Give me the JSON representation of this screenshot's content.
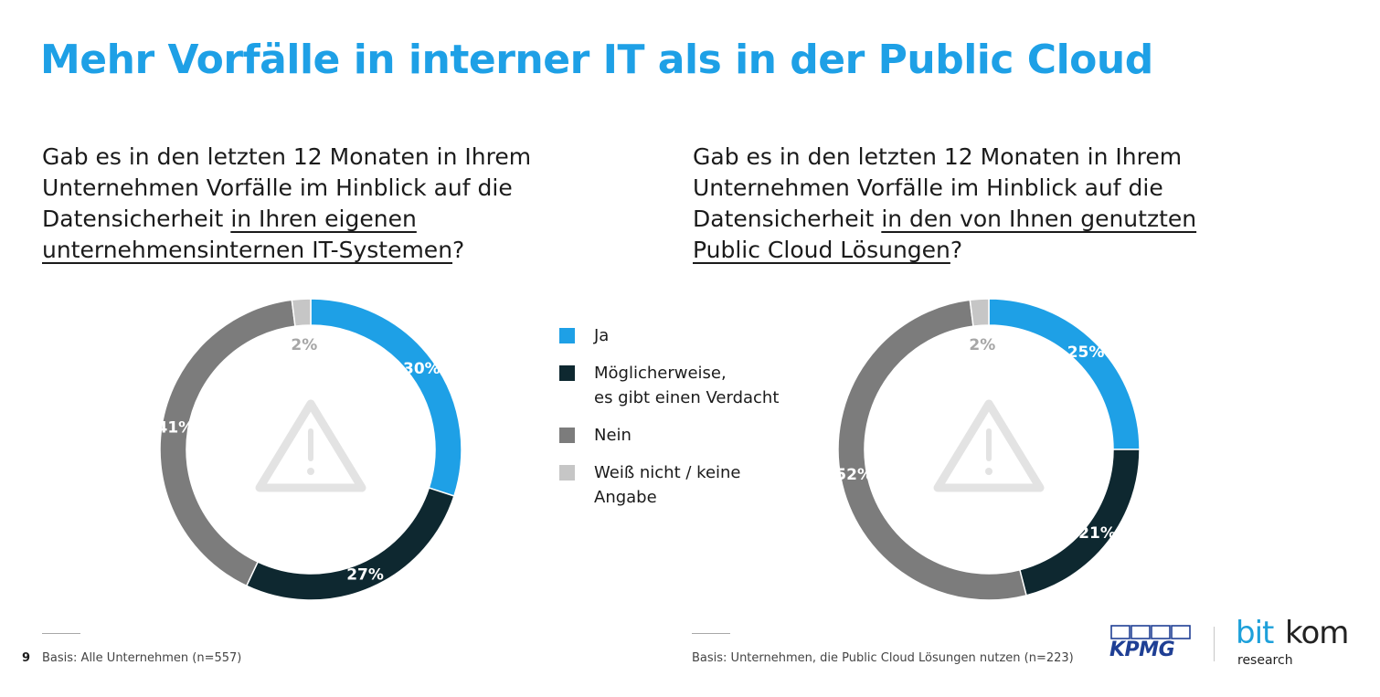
{
  "page": {
    "title": "Mehr Vorfälle in interner IT als in der Public Cloud",
    "page_number": "9"
  },
  "colors": {
    "accent": "#1ea0e6",
    "ja": "#1ea0e6",
    "moeglicherweise": "#0e2830",
    "nein": "#7c7c7c",
    "weiss_nicht": "#c6c6c6"
  },
  "questions": {
    "left": {
      "text_plain": "Gab es in den letzten 12 Monaten in Ihrem Unternehmen Vorfälle im Hinblick auf die Datensicherheit ",
      "text_underlined": "in Ihren eigenen unternehmensinternen IT-Systemen",
      "text_end": "?"
    },
    "right": {
      "text_plain": "Gab es in den letzten 12 Monaten in Ihrem Unternehmen Vorfälle im Hinblick auf die Datensicherheit ",
      "text_underlined": "in den von Ihnen genutzten Public Cloud Lösungen",
      "text_end": "?"
    }
  },
  "legend": {
    "items": [
      {
        "label": "Ja",
        "label_line2": "",
        "color_key": "ja"
      },
      {
        "label": "Möglicherweise,",
        "label_line2": "es gibt einen Verdacht",
        "color_key": "moeglicherweise"
      },
      {
        "label": "Nein",
        "label_line2": "",
        "color_key": "nein"
      },
      {
        "label": "Weiß nicht / keine",
        "label_line2": "Angabe",
        "color_key": "weiss_nicht"
      }
    ]
  },
  "chart_data": [
    {
      "type": "pie",
      "subtype": "donut",
      "id": "left",
      "title": "Gab es in den letzten 12 Monaten in Ihrem Unternehmen Vorfälle im Hinblick auf die Datensicherheit in Ihren eigenen unternehmensinternen IT-Systemen?",
      "categories": [
        "Ja",
        "Möglicherweise, es gibt einen Verdacht",
        "Nein",
        "Weiß nicht / keine Angabe"
      ],
      "values": [
        30,
        27,
        41,
        2
      ],
      "labels": [
        "30%",
        "27%",
        "41%",
        "2%"
      ],
      "unit": "%",
      "basis": "Basis: Alle Unternehmen (n=557)"
    },
    {
      "type": "pie",
      "subtype": "donut",
      "id": "right",
      "title": "Gab es in den letzten 12 Monaten in Ihrem Unternehmen Vorfälle im Hinblick auf die Datensicherheit in den von Ihnen genutzten Public Cloud Lösungen?",
      "categories": [
        "Ja",
        "Möglicherweise, es gibt einen Verdacht",
        "Nein",
        "Weiß nicht / keine Angabe"
      ],
      "values": [
        25,
        21,
        52,
        2
      ],
      "labels": [
        "25%",
        "21%",
        "52%",
        "2%"
      ],
      "unit": "%",
      "basis": "Basis: Unternehmen, die Public Cloud Lösungen nutzen (n=223)"
    }
  ],
  "logos": {
    "kpmg": "KPMG",
    "bitkom_bit": "bit",
    "bitkom_kom": "kom",
    "bitkom_research": "research"
  }
}
